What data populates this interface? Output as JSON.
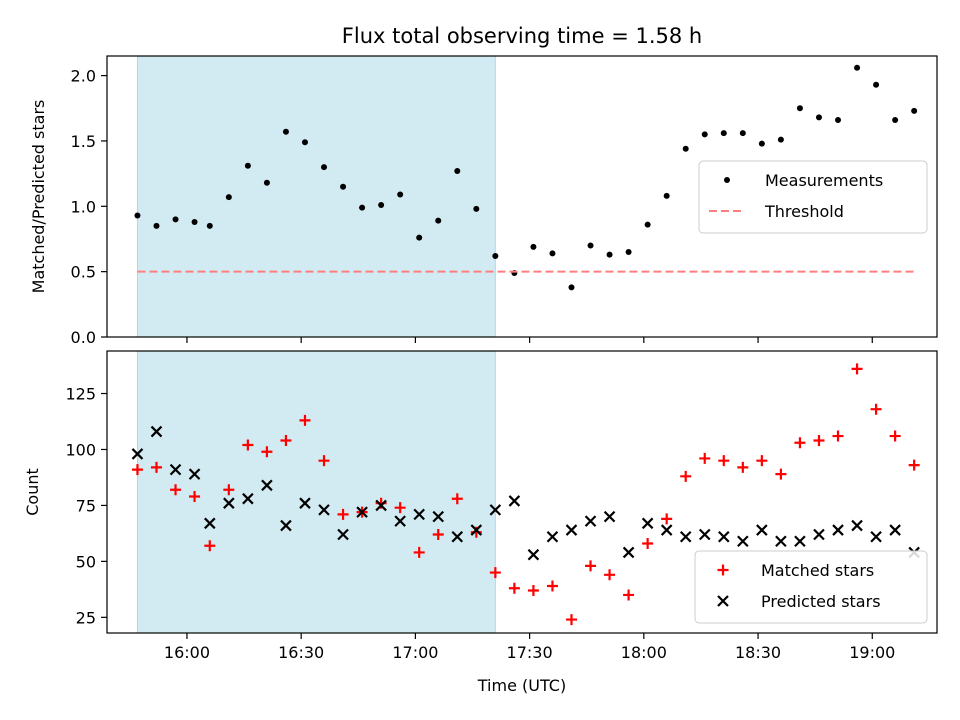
{
  "title": "Flux total observing time = 1.58 h",
  "shaded_region": {
    "start": "15:47",
    "end": "17:21",
    "color": "#add8e6"
  },
  "chart_data": [
    {
      "type": "scatter",
      "ylabel": "Matched/Predicted stars",
      "xlim": [
        "15:39",
        "19:17"
      ],
      "ylim": [
        0,
        2.15
      ],
      "yticks": [
        0.0,
        0.5,
        1.0,
        1.5,
        2.0
      ],
      "ytick_labels": [
        "0.0",
        "0.5",
        "1.0",
        "1.5",
        "2.0"
      ],
      "legend": {
        "position": "center-right",
        "entries": [
          "Measurements",
          "Threshold"
        ]
      },
      "series": [
        {
          "name": "Measurements",
          "color": "#000000",
          "marker": "dot",
          "x": [
            "15:47",
            "15:52",
            "15:57",
            "16:02",
            "16:06",
            "16:11",
            "16:16",
            "16:21",
            "16:26",
            "16:31",
            "16:36",
            "16:41",
            "16:46",
            "16:51",
            "16:56",
            "17:01",
            "17:06",
            "17:11",
            "17:16",
            "17:21",
            "17:26",
            "17:31",
            "17:36",
            "17:41",
            "17:46",
            "17:51",
            "17:56",
            "18:01",
            "18:06",
            "18:11",
            "18:16",
            "18:21",
            "18:26",
            "18:31",
            "18:36",
            "18:41",
            "18:46",
            "18:51",
            "18:56",
            "19:01",
            "19:06",
            "19:11"
          ],
          "y": [
            0.93,
            0.85,
            0.9,
            0.88,
            0.85,
            1.07,
            1.31,
            1.18,
            1.57,
            1.49,
            1.3,
            1.15,
            0.99,
            1.01,
            1.09,
            0.76,
            0.89,
            1.27,
            0.98,
            0.62,
            0.49,
            0.69,
            0.64,
            0.38,
            0.7,
            0.63,
            0.65,
            0.86,
            1.08,
            1.44,
            1.55,
            1.56,
            1.56,
            1.48,
            1.51,
            1.75,
            1.68,
            1.66,
            2.06,
            1.93,
            1.66,
            1.73
          ]
        },
        {
          "name": "Threshold",
          "color": "#ff7f7f",
          "marker": "dashed-line",
          "x": [
            "15:47",
            "19:11"
          ],
          "y": [
            0.5,
            0.5
          ]
        }
      ]
    },
    {
      "type": "scatter",
      "ylabel": "Count",
      "xlabel": "Time (UTC)",
      "xlim": [
        "15:39",
        "19:17"
      ],
      "ylim": [
        18,
        144
      ],
      "yticks": [
        25,
        50,
        75,
        100,
        125
      ],
      "ytick_labels": [
        "25",
        "50",
        "75",
        "100",
        "125"
      ],
      "xticks": [
        "16:00",
        "16:30",
        "17:00",
        "17:30",
        "18:00",
        "18:30",
        "19:00"
      ],
      "xtick_labels": [
        "16:00",
        "16:30",
        "17:00",
        "17:30",
        "18:00",
        "18:30",
        "19:00"
      ],
      "legend": {
        "position": "bottom-right",
        "entries": [
          "Matched stars",
          "Predicted stars"
        ]
      },
      "series": [
        {
          "name": "Matched stars",
          "color": "#ff0000",
          "marker": "plus",
          "x": [
            "15:47",
            "15:52",
            "15:57",
            "16:02",
            "16:06",
            "16:11",
            "16:16",
            "16:21",
            "16:26",
            "16:31",
            "16:36",
            "16:41",
            "16:46",
            "16:51",
            "16:56",
            "17:01",
            "17:06",
            "17:11",
            "17:16",
            "17:21",
            "17:26",
            "17:31",
            "17:36",
            "17:41",
            "17:46",
            "17:51",
            "17:56",
            "18:01",
            "18:06",
            "18:11",
            "18:16",
            "18:21",
            "18:26",
            "18:31",
            "18:36",
            "18:41",
            "18:46",
            "18:51",
            "18:56",
            "19:01",
            "19:06",
            "19:11"
          ],
          "y": [
            91,
            92,
            82,
            79,
            57,
            82,
            102,
            99,
            104,
            113,
            95,
            71,
            72,
            76,
            74,
            54,
            62,
            78,
            63,
            45,
            38,
            37,
            39,
            24,
            48,
            44,
            35,
            58,
            69,
            88,
            96,
            95,
            92,
            95,
            89,
            103,
            104,
            106,
            136,
            118,
            106,
            93
          ]
        },
        {
          "name": "Predicted stars",
          "color": "#000000",
          "marker": "x",
          "x": [
            "15:47",
            "15:52",
            "15:57",
            "16:02",
            "16:06",
            "16:11",
            "16:16",
            "16:21",
            "16:26",
            "16:31",
            "16:36",
            "16:41",
            "16:46",
            "16:51",
            "16:56",
            "17:01",
            "17:06",
            "17:11",
            "17:16",
            "17:21",
            "17:26",
            "17:31",
            "17:36",
            "17:41",
            "17:46",
            "17:51",
            "17:56",
            "18:01",
            "18:06",
            "18:11",
            "18:16",
            "18:21",
            "18:26",
            "18:31",
            "18:36",
            "18:41",
            "18:46",
            "18:51",
            "18:56",
            "19:01",
            "19:06",
            "19:11"
          ],
          "y": [
            98,
            108,
            91,
            89,
            67,
            76,
            78,
            84,
            66,
            76,
            73,
            62,
            72,
            75,
            68,
            71,
            70,
            61,
            64,
            73,
            77,
            53,
            61,
            64,
            68,
            70,
            54,
            67,
            64,
            61,
            62,
            61,
            59,
            64,
            59,
            59,
            62,
            64,
            66,
            61,
            64,
            54
          ]
        }
      ]
    }
  ]
}
